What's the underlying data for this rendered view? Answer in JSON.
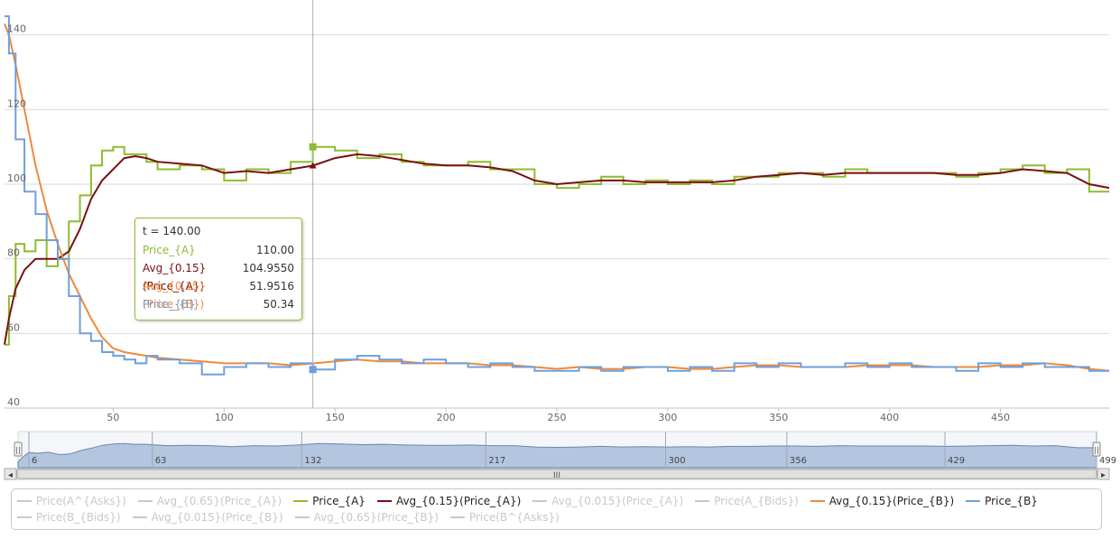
{
  "chart_data": {
    "type": "line",
    "step": true,
    "x_range": [
      1,
      499
    ],
    "ylim": [
      40,
      145
    ],
    "y_ticks": [
      40,
      60,
      80,
      100,
      120,
      140
    ],
    "y_tick_labels": [
      "40",
      "60",
      "80",
      "100",
      "120",
      "140"
    ],
    "x_ticks": [
      50,
      100,
      150,
      200,
      250,
      300,
      350,
      400,
      450
    ],
    "x_tick_labels": [
      "50",
      "100",
      "150",
      "200",
      "250",
      "300",
      "350",
      "400",
      "450"
    ],
    "crosshair_x": 140,
    "grid": true,
    "series": [
      {
        "name": "Price_{A}",
        "color": "#8ebc2f",
        "visible": true,
        "x": [
          1,
          3,
          6,
          10,
          15,
          20,
          25,
          30,
          35,
          40,
          45,
          50,
          55,
          60,
          65,
          70,
          80,
          90,
          100,
          110,
          120,
          130,
          140,
          150,
          160,
          170,
          180,
          190,
          200,
          210,
          220,
          230,
          240,
          250,
          260,
          270,
          280,
          290,
          300,
          310,
          320,
          330,
          340,
          350,
          360,
          370,
          380,
          390,
          400,
          410,
          420,
          430,
          440,
          450,
          460,
          470,
          480,
          490,
          499
        ],
        "y": [
          57,
          70,
          84,
          82,
          85,
          78,
          80,
          90,
          97,
          105,
          109,
          110,
          108,
          108,
          106,
          104,
          105,
          104,
          101,
          104,
          103,
          106,
          110,
          109,
          107,
          108,
          106,
          105,
          105,
          106,
          104,
          104,
          100,
          99,
          100,
          102,
          100,
          101,
          100,
          101,
          100,
          102,
          102,
          103,
          103,
          102,
          104,
          103,
          103,
          103,
          103,
          102,
          103,
          104,
          105,
          103,
          104,
          98,
          98
        ]
      },
      {
        "name": "Avg_{0.15}(Price_{A})",
        "color": "#7b0f12",
        "visible": true,
        "x": [
          1,
          3,
          6,
          10,
          15,
          20,
          25,
          30,
          35,
          40,
          45,
          50,
          55,
          60,
          65,
          70,
          80,
          90,
          100,
          110,
          120,
          130,
          140,
          150,
          160,
          170,
          180,
          190,
          200,
          210,
          220,
          230,
          240,
          250,
          260,
          270,
          280,
          290,
          300,
          310,
          320,
          330,
          340,
          350,
          360,
          370,
          380,
          390,
          400,
          410,
          420,
          430,
          440,
          450,
          460,
          470,
          480,
          490,
          499
        ],
        "y": [
          57,
          64,
          72,
          77,
          80,
          80,
          80,
          82,
          88,
          96,
          101,
          104,
          107,
          107.5,
          107,
          106,
          105.5,
          105,
          103,
          103.5,
          103,
          104,
          104.955,
          107,
          108,
          107.5,
          106.5,
          105.5,
          105,
          105,
          104.5,
          103.5,
          101,
          100,
          100.5,
          101,
          101,
          100.5,
          100.5,
          100.5,
          100.5,
          101,
          102,
          102.5,
          103,
          102.5,
          103,
          103,
          103,
          103,
          103,
          102.5,
          102.5,
          103,
          104,
          103.5,
          103,
          100,
          99
        ]
      },
      {
        "name": "Avg_{0.15}(Price_{B})",
        "color": "#f0893a",
        "visible": true,
        "x": [
          1,
          3,
          6,
          10,
          15,
          20,
          25,
          30,
          35,
          40,
          45,
          50,
          55,
          60,
          65,
          70,
          80,
          90,
          100,
          110,
          120,
          130,
          140,
          150,
          160,
          170,
          180,
          190,
          200,
          210,
          220,
          230,
          240,
          250,
          260,
          270,
          280,
          290,
          300,
          310,
          320,
          330,
          340,
          350,
          360,
          370,
          380,
          390,
          400,
          410,
          420,
          430,
          440,
          450,
          460,
          470,
          480,
          490,
          499
        ],
        "y": [
          143,
          140,
          132,
          120,
          105,
          93,
          84,
          76,
          70,
          64,
          59,
          56,
          55,
          54.5,
          54,
          53.5,
          53,
          52.5,
          52,
          52,
          52,
          51.5,
          51.95,
          52.5,
          53,
          52.5,
          52.5,
          52,
          52,
          52,
          51.5,
          51.5,
          51,
          50.5,
          51,
          50.5,
          50.5,
          51,
          51,
          50.5,
          50.5,
          51,
          51.5,
          51.5,
          51,
          51,
          51,
          51.5,
          51.5,
          51.5,
          51,
          51,
          51,
          51.5,
          51.5,
          52,
          51.5,
          50.5,
          50
        ]
      },
      {
        "name": "Price_{B}",
        "color": "#6f9fdc",
        "visible": true,
        "x": [
          1,
          3,
          6,
          10,
          15,
          20,
          25,
          30,
          35,
          40,
          45,
          50,
          55,
          60,
          65,
          70,
          80,
          90,
          100,
          110,
          120,
          130,
          140,
          150,
          160,
          170,
          180,
          190,
          200,
          210,
          220,
          230,
          240,
          250,
          260,
          270,
          280,
          290,
          300,
          310,
          320,
          330,
          340,
          350,
          360,
          370,
          380,
          390,
          400,
          410,
          420,
          430,
          440,
          450,
          460,
          470,
          480,
          490,
          499
        ],
        "y": [
          145,
          135,
          112,
          98,
          92,
          85,
          80,
          70,
          60,
          58,
          55,
          54,
          53,
          52,
          54,
          53,
          52,
          49,
          51,
          52,
          51,
          52,
          50.34,
          53,
          54,
          53,
          52,
          53,
          52,
          51,
          52,
          51,
          50,
          50,
          51,
          50,
          51,
          51,
          50,
          51,
          50,
          52,
          51,
          52,
          51,
          51,
          52,
          51,
          52,
          51,
          51,
          50,
          52,
          51,
          52,
          51,
          51,
          50,
          50
        ]
      },
      {
        "name": "Price(A^{Asks})",
        "visible": false
      },
      {
        "name": "Avg_{0.65}(Price_{A})",
        "visible": false
      },
      {
        "name": "Avg_{0.015}(Price_{A})",
        "visible": false
      },
      {
        "name": "Price(A_{Bids})",
        "visible": false
      },
      {
        "name": "Price(B_{Bids})",
        "visible": false
      },
      {
        "name": "Avg_{0.015}(Price_{B})",
        "visible": false
      },
      {
        "name": "Avg_{0.65}(Price_{B})",
        "visible": false
      },
      {
        "name": "Price(B^{Asks})",
        "visible": false
      }
    ]
  },
  "navigator": {
    "labels": [
      "6",
      "63",
      "132",
      "217",
      "300",
      "356",
      "429",
      "499"
    ],
    "label_x": [
      6,
      63,
      132,
      217,
      300,
      356,
      429,
      499
    ],
    "scroll_grip": "III",
    "left_arrow": "◂",
    "right_arrow": "▸",
    "handle_grip": "||",
    "fill_color": "#b4c6df",
    "line_color": "#6a86ad"
  },
  "tooltip": {
    "title": "t = 140.00",
    "border_color": "#8ebc3a",
    "rows": [
      {
        "label": "Price_{A}",
        "value": "110.00",
        "color": "#8ebc2f"
      },
      {
        "label": "Avg_{0.15}(Price_{A})",
        "value": "104.9550",
        "color": "#7b0f12"
      },
      {
        "label": "Avg_{0.15}(Price_{B})",
        "value": "51.9516",
        "color": "#f0893a"
      },
      {
        "label": "Price_{B}",
        "value": "50.34",
        "color": "#6f9fdc"
      }
    ]
  },
  "legend": {
    "items": [
      {
        "label": "Price(A^{Asks})",
        "active": false,
        "color": "#c8c8c8"
      },
      {
        "label": "Avg_{0.65}(Price_{A})",
        "active": false,
        "color": "#c8c8c8"
      },
      {
        "label": "Price_{A}",
        "active": true,
        "color": "#8ebc2f"
      },
      {
        "label": "Avg_{0.15}(Price_{A})",
        "active": true,
        "color": "#7b0f12"
      },
      {
        "label": "Avg_{0.015}(Price_{A})",
        "active": false,
        "color": "#c8c8c8"
      },
      {
        "label": "Price(A_{Bids})",
        "active": false,
        "color": "#c8c8c8"
      },
      {
        "label": "Avg_{0.15}(Price_{B})",
        "active": true,
        "color": "#f0893a"
      },
      {
        "label": "Price_{B}",
        "active": true,
        "color": "#6f9fdc"
      },
      {
        "label": "Price(B_{Bids})",
        "active": false,
        "color": "#c8c8c8"
      },
      {
        "label": "Avg_{0.015}(Price_{B})",
        "active": false,
        "color": "#c8c8c8"
      },
      {
        "label": "Avg_{0.65}(Price_{B})",
        "active": false,
        "color": "#c8c8c8"
      },
      {
        "label": "Price(B^{Asks})",
        "active": false,
        "color": "#c8c8c8"
      }
    ]
  }
}
